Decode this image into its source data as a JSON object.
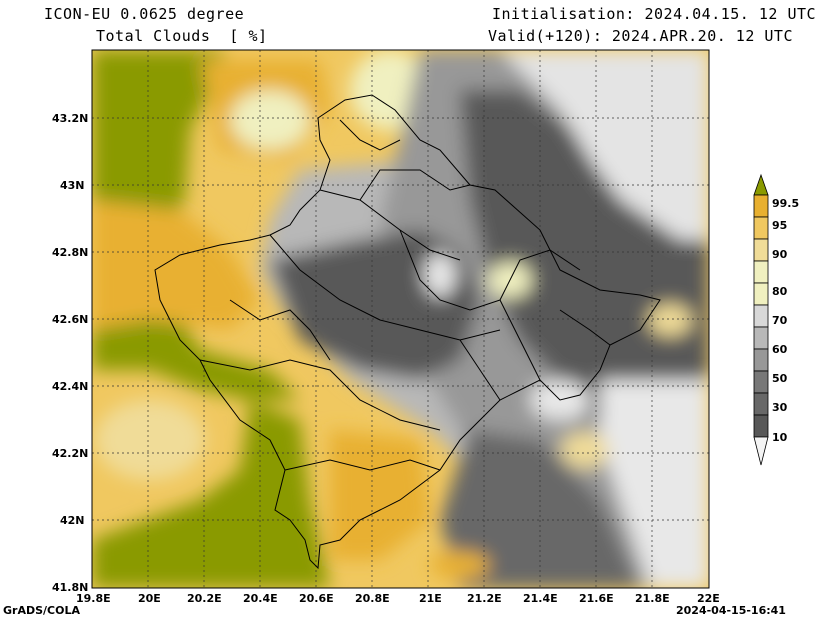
{
  "header": {
    "model": "ICON-EU 0.0625 degree",
    "variable": "Total Clouds  [ %]",
    "init": "Initialisation: 2024.04.15. 12 UTC",
    "valid": "Valid(+120): 2024.APR.20. 12 UTC"
  },
  "axes": {
    "lon_ticks": [
      "19.8E",
      "20E",
      "20.2E",
      "20.4E",
      "20.6E",
      "20.8E",
      "21E",
      "21.2E",
      "21.4E",
      "21.6E",
      "21.8E",
      "22E"
    ],
    "lat_ticks": [
      "43.2N",
      "43N",
      "42.8N",
      "42.6N",
      "42.4N",
      "42.2N",
      "42N",
      "41.8N"
    ],
    "lon_range": [
      19.8,
      22.0
    ],
    "lat_range": [
      41.8,
      43.4
    ]
  },
  "colorbar": {
    "labels": [
      "99.5",
      "95",
      "90",
      "80",
      "70",
      "60",
      "50",
      "30",
      "10"
    ],
    "colors": [
      "#8a9a00",
      "#e8b030",
      "#f0c860",
      "#f0dc98",
      "#f0f0c0",
      "#d8d8d8",
      "#b8b8b8",
      "#989898",
      "#787878",
      "#585858",
      "#f4f4f4"
    ]
  },
  "footer": {
    "left": "GrADS/COLA",
    "right": "2024-04-15-16:41"
  }
}
